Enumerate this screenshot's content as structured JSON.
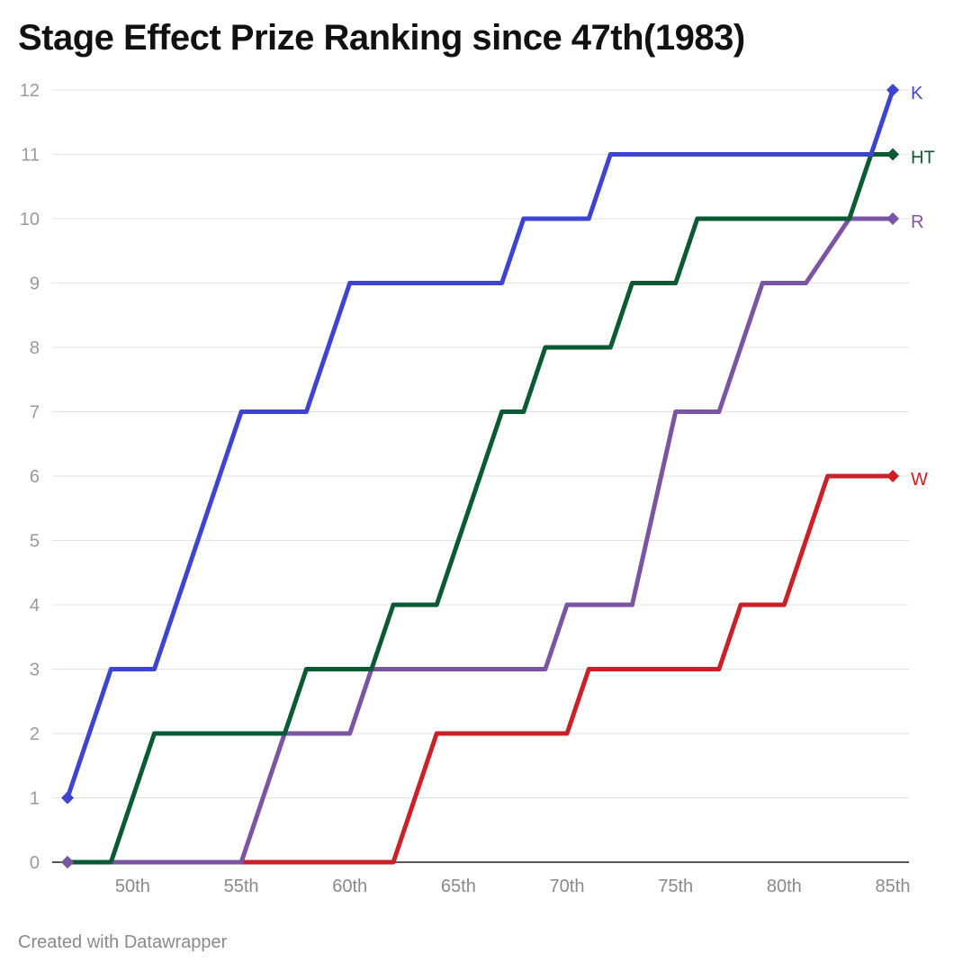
{
  "chart_data": {
    "type": "line",
    "title": "Stage Effect Prize Ranking since 47th(1983)",
    "credit": "Created with Datawrapper",
    "xlabel": "",
    "ylabel": "",
    "xlim": [
      47,
      85
    ],
    "ylim": [
      0,
      12
    ],
    "y_ticks": [
      "0",
      "1",
      "2",
      "3",
      "4",
      "5",
      "6",
      "7",
      "8",
      "9",
      "10",
      "11",
      "12"
    ],
    "x_ticks": [
      {
        "value": 50,
        "label": "50th"
      },
      {
        "value": 55,
        "label": "55th"
      },
      {
        "value": 60,
        "label": "60th"
      },
      {
        "value": 65,
        "label": "65th"
      },
      {
        "value": 70,
        "label": "70th"
      },
      {
        "value": 75,
        "label": "75th"
      },
      {
        "value": 80,
        "label": "80th"
      },
      {
        "value": 85,
        "label": "85th"
      }
    ],
    "grid": true,
    "legend": "direct labels at line ends",
    "series": [
      {
        "name": "K",
        "color": "#3d44cf",
        "points": [
          [
            47,
            1
          ],
          [
            49,
            3
          ],
          [
            51,
            3
          ],
          [
            55,
            7
          ],
          [
            58,
            7
          ],
          [
            60,
            9
          ],
          [
            67,
            9
          ],
          [
            68,
            10
          ],
          [
            71,
            10
          ],
          [
            72,
            11
          ],
          [
            84,
            11
          ],
          [
            85,
            12
          ]
        ]
      },
      {
        "name": "HT",
        "color": "#0a5a34",
        "points": [
          [
            47,
            0
          ],
          [
            49,
            0
          ],
          [
            51,
            2
          ],
          [
            57,
            2
          ],
          [
            58,
            3
          ],
          [
            61,
            3
          ],
          [
            62,
            4
          ],
          [
            64,
            4
          ],
          [
            67,
            7
          ],
          [
            68,
            7
          ],
          [
            69,
            8
          ],
          [
            72,
            8
          ],
          [
            73,
            9
          ],
          [
            75,
            9
          ],
          [
            76,
            10
          ],
          [
            83,
            10
          ],
          [
            84,
            11
          ],
          [
            85,
            11
          ]
        ]
      },
      {
        "name": "R",
        "color": "#7b55a3",
        "points": [
          [
            47,
            0
          ],
          [
            55,
            0
          ],
          [
            57,
            2
          ],
          [
            60,
            2
          ],
          [
            61,
            3
          ],
          [
            69,
            3
          ],
          [
            70,
            4
          ],
          [
            73,
            4
          ],
          [
            75,
            7
          ],
          [
            77,
            7
          ],
          [
            79,
            9
          ],
          [
            81,
            9
          ],
          [
            83,
            10
          ],
          [
            85,
            10
          ]
        ]
      },
      {
        "name": "W",
        "color": "#cb2027",
        "points": [
          [
            55,
            0
          ],
          [
            62,
            0
          ],
          [
            64,
            2
          ],
          [
            70,
            2
          ],
          [
            71,
            3
          ],
          [
            77,
            3
          ],
          [
            78,
            4
          ],
          [
            80,
            4
          ],
          [
            82,
            6
          ],
          [
            85,
            6
          ]
        ]
      }
    ]
  }
}
